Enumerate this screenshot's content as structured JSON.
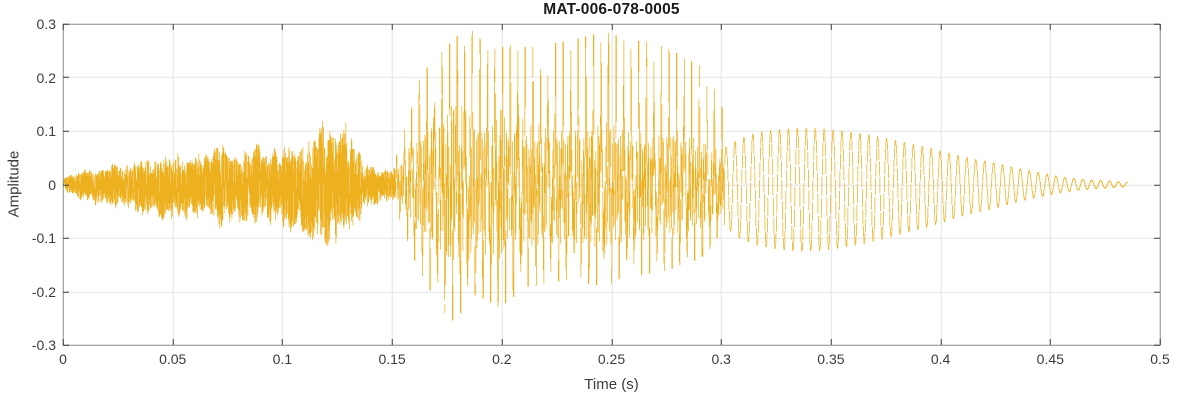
{
  "chart_data": {
    "type": "line",
    "title": "MAT-006-078-0005",
    "xlabel": "Time (s)",
    "ylabel": "Amplitude",
    "xlim": [
      0,
      0.5
    ],
    "ylim": [
      -0.3,
      0.3
    ],
    "grid": true,
    "legend_position": "none",
    "xtick_values": [
      0,
      0.05,
      0.1,
      0.15,
      0.2,
      0.25,
      0.3,
      0.35,
      0.4,
      0.45,
      0.5
    ],
    "xtick_labels": [
      "0",
      "0.05",
      "0.1",
      "0.15",
      "0.2",
      "0.25",
      "0.3",
      "0.35",
      "0.4",
      "0.45",
      "0.5"
    ],
    "ytick_values": [
      0.3,
      0.2,
      0.1,
      0,
      -0.1,
      -0.2,
      -0.3
    ],
    "ytick_labels": [
      "0.3",
      "0.2",
      "0.1",
      "0",
      "-0.1",
      "-0.2",
      "-0.3"
    ],
    "line_color": "#EDB120",
    "signal": {
      "kind": "speech-like audio waveform",
      "duration_s": 0.485,
      "segments": [
        {
          "name": "noisy-onset",
          "type": "noise",
          "t_start": 0.0,
          "t_end": 0.1515,
          "t": [
            0.0,
            0.004,
            0.01,
            0.02,
            0.03,
            0.04,
            0.05,
            0.058,
            0.065,
            0.072,
            0.08,
            0.088,
            0.095,
            0.102,
            0.108,
            0.114,
            0.119,
            0.124,
            0.128,
            0.132,
            0.137,
            0.142,
            0.147,
            0.1515
          ],
          "env_top": [
            0.012,
            0.02,
            0.028,
            0.035,
            0.04,
            0.048,
            0.058,
            0.052,
            0.065,
            0.07,
            0.06,
            0.072,
            0.058,
            0.068,
            0.075,
            0.1,
            0.112,
            0.095,
            0.145,
            0.075,
            0.045,
            0.038,
            0.032,
            0.03
          ],
          "env_bot": [
            0.012,
            0.022,
            0.03,
            0.04,
            0.048,
            0.055,
            0.065,
            0.06,
            0.072,
            0.078,
            0.068,
            0.08,
            0.07,
            0.08,
            0.088,
            0.11,
            0.12,
            0.105,
            0.135,
            0.085,
            0.055,
            0.045,
            0.038,
            0.032
          ]
        },
        {
          "name": "voiced-vowel",
          "type": "pulse-train",
          "t_start": 0.1515,
          "t_end": 0.3015,
          "pulse_hz": 290,
          "t": [
            0.1515,
            0.156,
            0.161,
            0.167,
            0.173,
            0.178,
            0.183,
            0.188,
            0.193,
            0.199,
            0.205,
            0.212,
            0.219,
            0.226,
            0.233,
            0.24,
            0.247,
            0.254,
            0.261,
            0.268,
            0.275,
            0.282,
            0.289,
            0.295,
            0.3015
          ],
          "env_top": [
            0.045,
            0.12,
            0.185,
            0.225,
            0.25,
            0.27,
            0.29,
            0.285,
            0.25,
            0.255,
            0.26,
            0.255,
            0.26,
            0.265,
            0.27,
            0.278,
            0.285,
            0.275,
            0.268,
            0.265,
            0.255,
            0.24,
            0.225,
            0.205,
            0.13
          ],
          "env_bot": [
            0.04,
            0.095,
            0.15,
            0.195,
            0.235,
            0.255,
            0.23,
            0.205,
            0.215,
            0.23,
            0.21,
            0.19,
            0.185,
            0.18,
            0.175,
            0.185,
            0.19,
            0.175,
            0.17,
            0.165,
            0.16,
            0.15,
            0.14,
            0.125,
            0.09
          ]
        },
        {
          "name": "decaying-tone",
          "type": "sine",
          "t_start": 0.3015,
          "t_end": 0.485,
          "freq_hz": 246,
          "t": [
            0.3015,
            0.308,
            0.315,
            0.325,
            0.335,
            0.345,
            0.355,
            0.365,
            0.375,
            0.385,
            0.395,
            0.405,
            0.415,
            0.425,
            0.435,
            0.445,
            0.455,
            0.462,
            0.47,
            0.478,
            0.485
          ],
          "env_top": [
            0.068,
            0.085,
            0.095,
            0.102,
            0.105,
            0.104,
            0.1,
            0.094,
            0.086,
            0.077,
            0.068,
            0.057,
            0.047,
            0.04,
            0.03,
            0.022,
            0.014,
            0.01,
            0.008,
            0.006,
            0.004
          ],
          "env_bot": [
            0.078,
            0.1,
            0.112,
            0.12,
            0.125,
            0.123,
            0.118,
            0.11,
            0.1,
            0.089,
            0.078,
            0.065,
            0.053,
            0.044,
            0.032,
            0.023,
            0.015,
            0.011,
            0.008,
            0.006,
            0.004
          ]
        }
      ]
    }
  },
  "colors": {
    "background": "#FFFFFF",
    "grid": "#E4E4E4",
    "box": "#8F8F8F",
    "tick": "#3C3C3C",
    "tick_label": "#3C3C3C",
    "axis_label": "#3C3C3C",
    "title": "#1A1A1A",
    "line": "#EDB120"
  }
}
